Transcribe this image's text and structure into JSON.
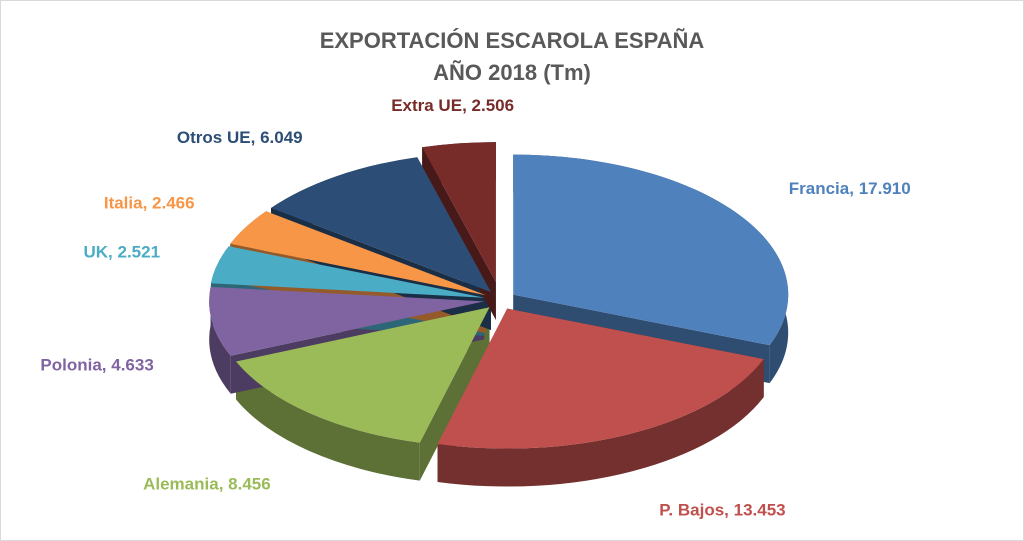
{
  "chart_data": {
    "type": "pie",
    "three_d": true,
    "title": [
      "EXPORTACIÓN ESCAROLA ESPAÑA",
      "AÑO 2018 (Tm)"
    ],
    "categories": [
      "Francia",
      "P. Bajos",
      "Alemania",
      "Polonia",
      "UK",
      "Italia",
      "Otros UE",
      "Extra UE"
    ],
    "values": [
      17910,
      13453,
      8456,
      4633,
      2521,
      2466,
      6049,
      2506
    ],
    "value_labels": [
      "17.910",
      "13.453",
      "8.456",
      "4.633",
      "2.521",
      "2.466",
      "6.049",
      "2.506"
    ],
    "label_separator": ", ",
    "colors": [
      "#4f81bd",
      "#c0504d",
      "#9bbb59",
      "#8064a2",
      "#4bacc6",
      "#f79646",
      "#2c4d75",
      "#772c2a"
    ]
  }
}
